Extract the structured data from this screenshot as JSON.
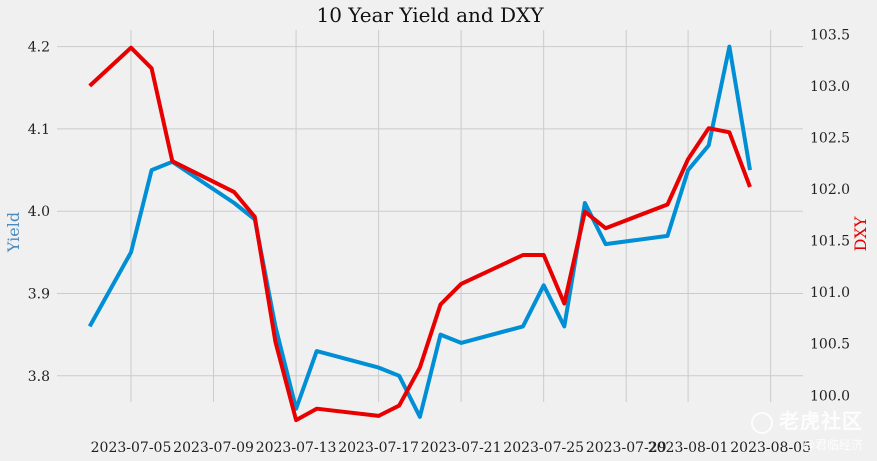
{
  "chart_data": {
    "type": "line",
    "title": "10 Year Yield and DXY",
    "ylabel_left": "Yield",
    "ylabel_right": "DXY",
    "ylim_left": [
      3.75,
      4.22
    ],
    "ylim_right": [
      99.8,
      103.5
    ],
    "left_ticks": [
      "3.8",
      "3.9",
      "4.0",
      "4.1",
      "4.2"
    ],
    "right_ticks": [
      "100.0",
      "100.5",
      "101.0",
      "101.5",
      "102.0",
      "102.5",
      "103.0",
      "103.5"
    ],
    "x_ticks": [
      "2023-07-05",
      "2023-07-09",
      "2023-07-13",
      "2023-07-17",
      "2023-07-21",
      "2023-07-25",
      "2023-07-29",
      "2023-08-01",
      "2023-08-05"
    ],
    "x": [
      "2023-07-03",
      "2023-07-05",
      "2023-07-06",
      "2023-07-07",
      "2023-07-10",
      "2023-07-11",
      "2023-07-12",
      "2023-07-13",
      "2023-07-14",
      "2023-07-17",
      "2023-07-18",
      "2023-07-19",
      "2023-07-20",
      "2023-07-21",
      "2023-07-24",
      "2023-07-25",
      "2023-07-26",
      "2023-07-27",
      "2023-07-28",
      "2023-07-31",
      "2023-08-01",
      "2023-08-02",
      "2023-08-03",
      "2023-08-04"
    ],
    "grid": true,
    "series": [
      {
        "name": "Yield",
        "axis": "left",
        "color": "#008fd5",
        "values": [
          3.86,
          3.95,
          4.05,
          4.06,
          4.01,
          3.99,
          3.86,
          3.76,
          3.83,
          3.81,
          3.8,
          3.75,
          3.85,
          3.84,
          3.86,
          3.91,
          3.86,
          4.01,
          3.96,
          3.97,
          4.05,
          4.08,
          4.2,
          4.05
        ]
      },
      {
        "name": "DXY",
        "axis": "right",
        "color": "#e80000",
        "values": [
          103.0,
          103.37,
          103.17,
          102.27,
          101.97,
          101.73,
          100.52,
          99.76,
          99.87,
          99.8,
          99.9,
          100.27,
          100.88,
          101.08,
          101.36,
          101.36,
          100.89,
          101.78,
          101.62,
          101.85,
          102.29,
          102.59,
          102.55,
          102.02
        ]
      }
    ]
  },
  "watermark": {
    "main": "老虎社区",
    "sub": "@君临经济"
  }
}
